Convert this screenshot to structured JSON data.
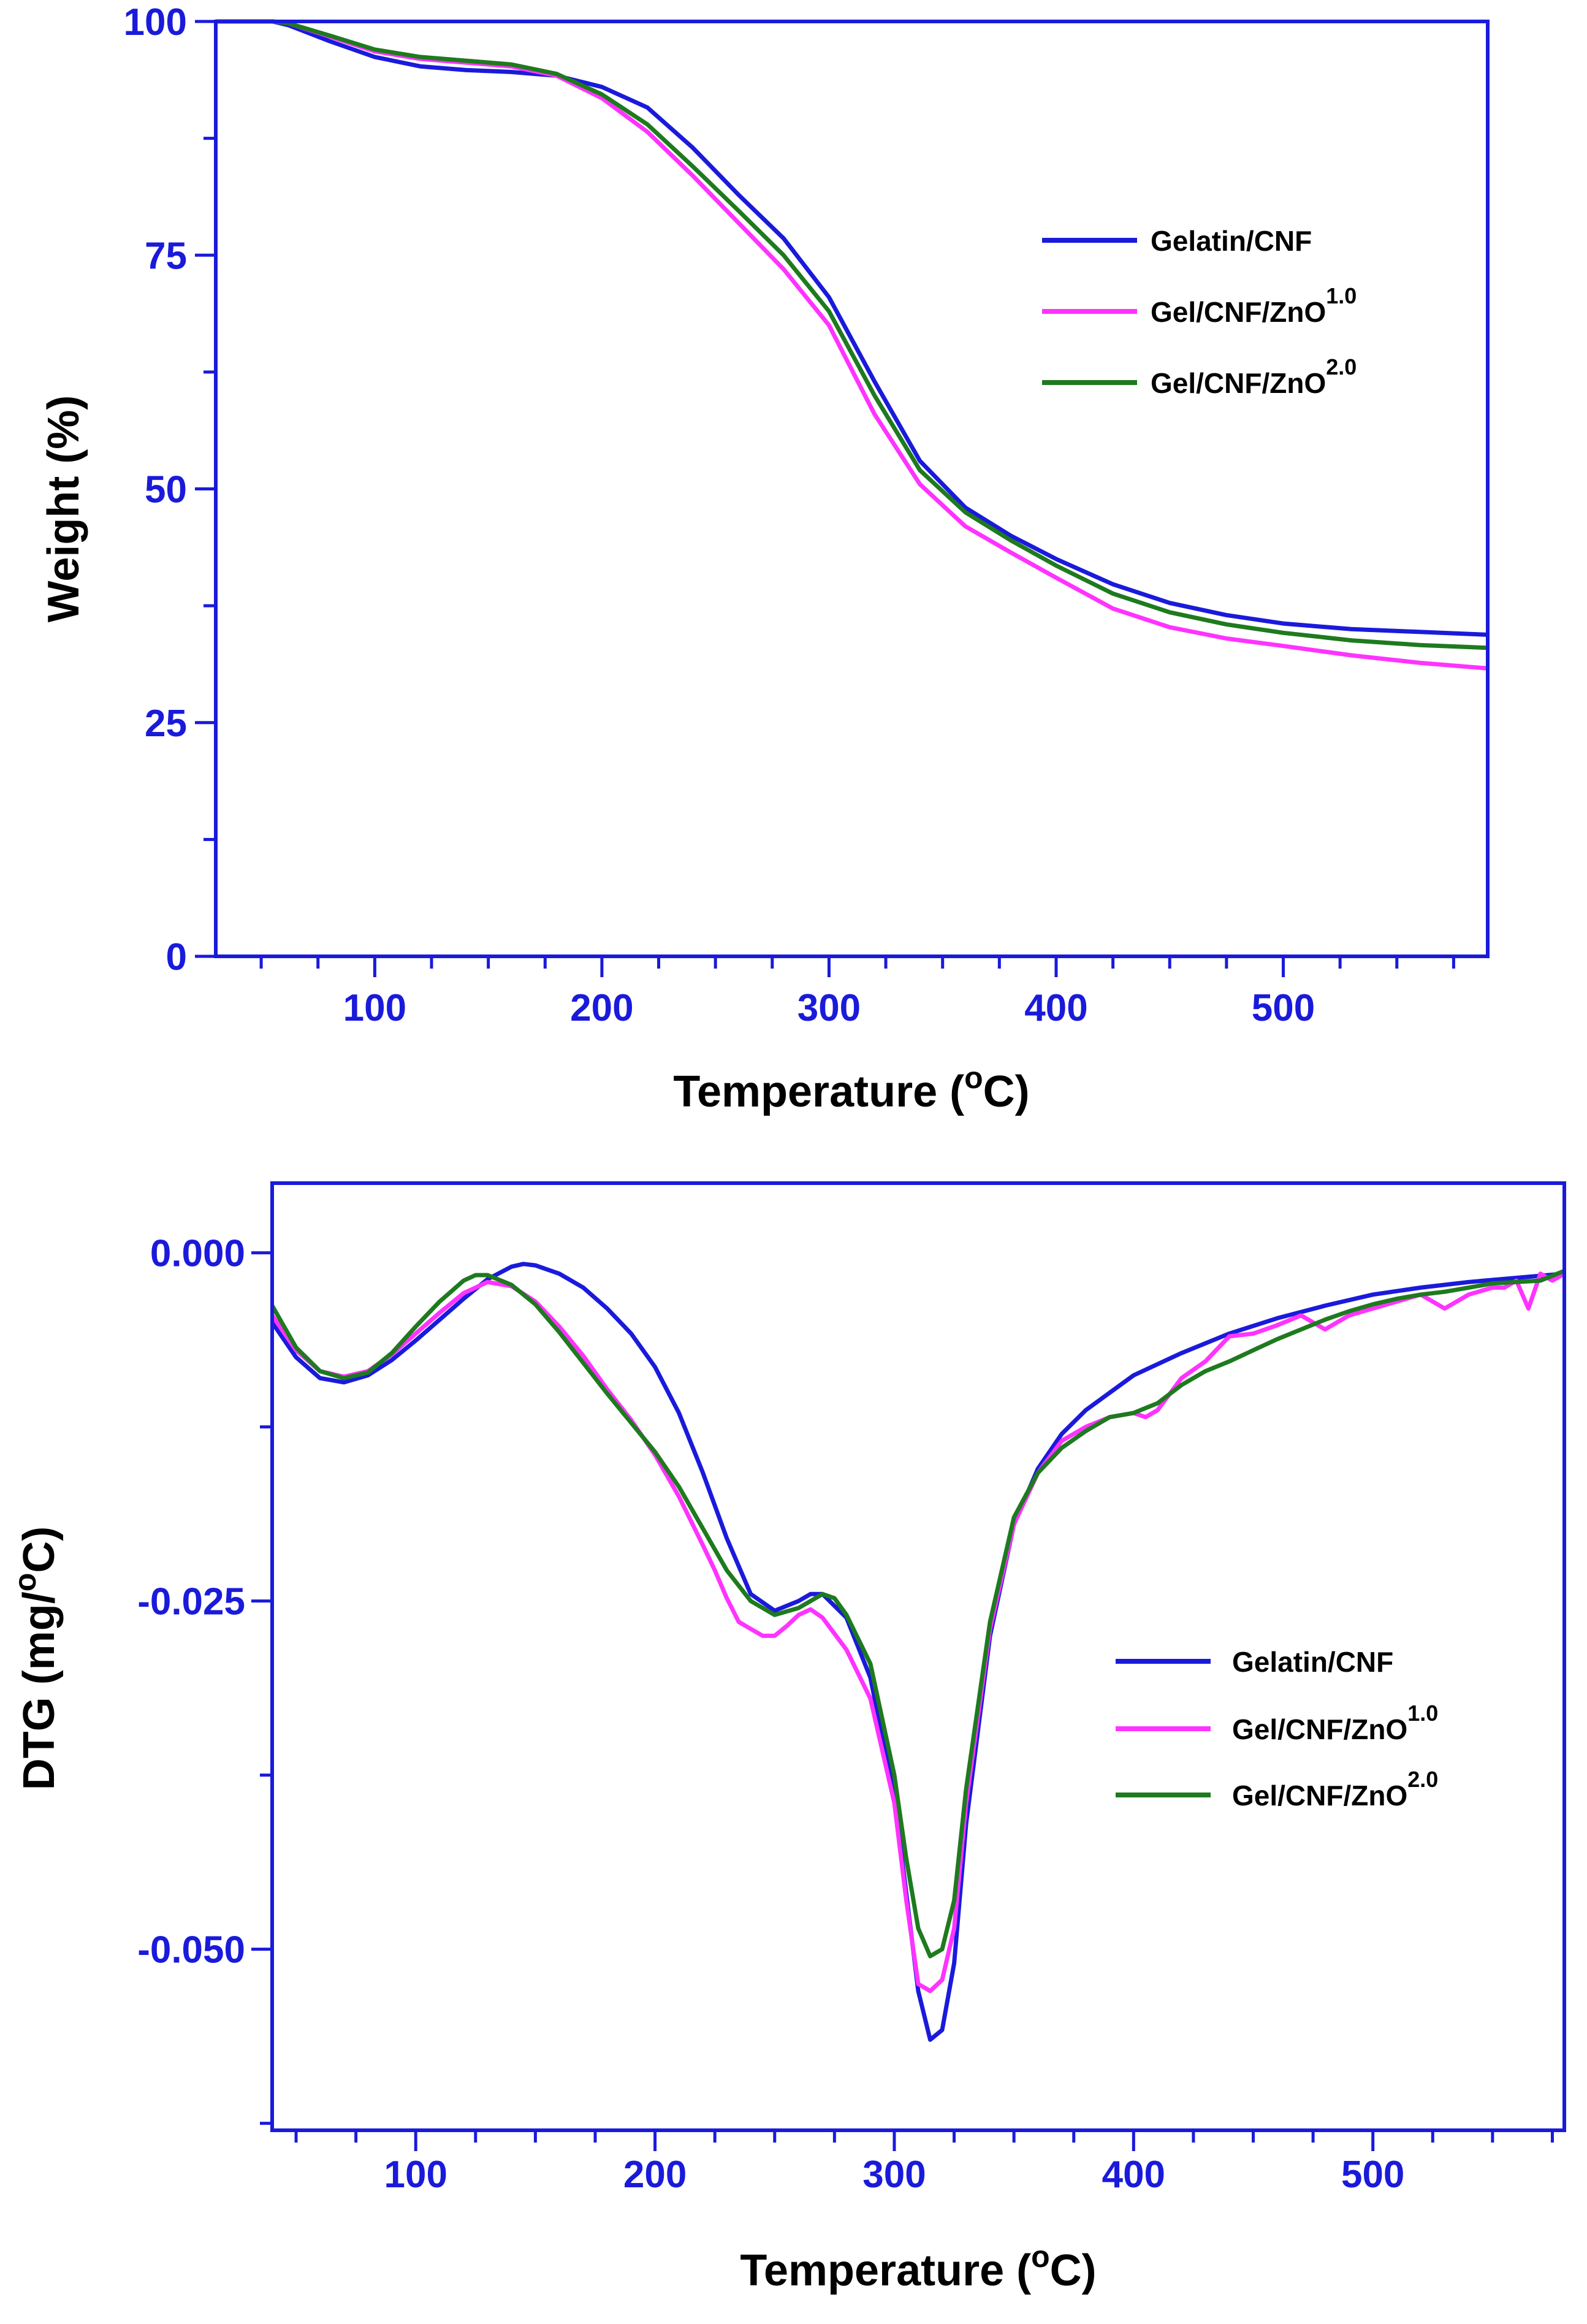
{
  "colors": {
    "axis": "#1a1adb",
    "gelatin_cnf": "#1a1adb",
    "zno_1": "#ff33ff",
    "zno_2": "#1e7a1e"
  },
  "chart_data": [
    {
      "type": "line",
      "title": "",
      "xlabel": "Temperature",
      "xlabel_unit_open": " (",
      "xlabel_unit_sup": "o",
      "xlabel_unit_close": "C)",
      "ylabel": "Weight (%)",
      "xlim": [
        30,
        590
      ],
      "ylim": [
        0,
        100
      ],
      "x_ticks": [
        100,
        200,
        300,
        400,
        500
      ],
      "x_tick_labels": [
        "100",
        "200",
        "300",
        "400",
        "500"
      ],
      "y_ticks": [
        0,
        25,
        50,
        75,
        100
      ],
      "y_tick_labels": [
        "0",
        "25",
        "50",
        "75",
        "100"
      ],
      "legend_position": "right",
      "series": [
        {
          "name": "Gelatin/CNF",
          "label_main": "Gelatin/CNF",
          "label_sup": "",
          "color": "#1a1adb",
          "x": [
            30,
            55,
            62,
            80,
            100,
            120,
            140,
            160,
            180,
            200,
            220,
            240,
            260,
            280,
            300,
            320,
            340,
            360,
            380,
            400,
            425,
            450,
            475,
            500,
            530,
            560,
            590
          ],
          "y": [
            100,
            100,
            99.6,
            97.9,
            96.2,
            95.2,
            94.8,
            94.6,
            94.2,
            93,
            90.8,
            86.5,
            81.5,
            76.8,
            70.5,
            61.5,
            53,
            48,
            45,
            42.5,
            39.8,
            37.8,
            36.5,
            35.6,
            35,
            34.7,
            34.4
          ]
        },
        {
          "name": "Gel/CNF/ZnO 1.0",
          "label_main": "Gel/CNF/ZnO",
          "label_sup": "1.0",
          "color": "#ff33ff",
          "x": [
            30,
            55,
            62,
            80,
            100,
            120,
            140,
            160,
            180,
            200,
            220,
            240,
            260,
            280,
            300,
            320,
            340,
            360,
            380,
            400,
            425,
            450,
            475,
            500,
            530,
            560,
            590
          ],
          "y": [
            100,
            100,
            99.8,
            98.4,
            96.8,
            96,
            95.6,
            95.2,
            94.2,
            91.8,
            88.2,
            83.5,
            78.5,
            73.5,
            67.5,
            58,
            50.5,
            46,
            43.2,
            40.5,
            37.2,
            35.2,
            34,
            33.2,
            32.2,
            31.4,
            30.8
          ]
        },
        {
          "name": "Gel/CNF/ZnO 2.0",
          "label_main": "Gel/CNF/ZnO",
          "label_sup": "2.0",
          "color": "#1e7a1e",
          "x": [
            30,
            55,
            62,
            80,
            100,
            120,
            140,
            160,
            180,
            200,
            220,
            240,
            260,
            280,
            300,
            320,
            340,
            360,
            380,
            400,
            425,
            450,
            475,
            500,
            530,
            560,
            590
          ],
          "y": [
            100,
            100,
            99.8,
            98.5,
            97,
            96.2,
            95.8,
            95.4,
            94.4,
            92.2,
            89,
            84.5,
            79.8,
            75,
            69,
            60,
            52,
            47.5,
            44.5,
            41.8,
            38.8,
            36.8,
            35.5,
            34.6,
            33.8,
            33.3,
            33
          ]
        }
      ]
    },
    {
      "type": "line",
      "title": "",
      "xlabel": "Temperature",
      "xlabel_unit_open": " (",
      "xlabel_unit_sup": "o",
      "xlabel_unit_close": "C)",
      "ylabel_main": "DTG (mg/",
      "ylabel_sup": "o",
      "ylabel_close": "C)",
      "xlim": [
        40,
        580
      ],
      "ylim": [
        -0.063,
        0.005
      ],
      "x_ticks": [
        100,
        200,
        300,
        400,
        500
      ],
      "x_tick_labels": [
        "100",
        "200",
        "300",
        "400",
        "500"
      ],
      "y_ticks": [
        0,
        -0.025,
        -0.05
      ],
      "y_tick_labels": [
        "0.000",
        "-0.025",
        "-0.050"
      ],
      "legend_position": "right",
      "series": [
        {
          "name": "Gelatin/CNF",
          "label_main": "Gelatin/CNF",
          "label_sup": "",
          "color": "#1a1adb",
          "x": [
            40,
            50,
            60,
            70,
            80,
            90,
            100,
            110,
            120,
            130,
            140,
            145,
            150,
            160,
            170,
            180,
            190,
            200,
            210,
            220,
            230,
            240,
            250,
            260,
            265,
            270,
            280,
            290,
            300,
            305,
            310,
            315,
            320,
            325,
            330,
            340,
            350,
            360,
            370,
            380,
            400,
            420,
            440,
            460,
            480,
            500,
            520,
            540,
            560,
            580
          ],
          "y": [
            -0.005,
            -0.0075,
            -0.009,
            -0.0093,
            -0.0088,
            -0.0077,
            -0.0063,
            -0.0048,
            -0.0033,
            -0.0019,
            -0.001,
            -0.0008,
            -0.0009,
            -0.0015,
            -0.0025,
            -0.004,
            -0.0058,
            -0.0082,
            -0.0115,
            -0.0158,
            -0.0205,
            -0.0245,
            -0.0257,
            -0.025,
            -0.0245,
            -0.0245,
            -0.0262,
            -0.0305,
            -0.039,
            -0.046,
            -0.053,
            -0.0565,
            -0.0558,
            -0.051,
            -0.041,
            -0.0275,
            -0.0195,
            -0.0155,
            -0.013,
            -0.0113,
            -0.0088,
            -0.0072,
            -0.0058,
            -0.0047,
            -0.0038,
            -0.003,
            -0.0025,
            -0.0021,
            -0.0018,
            -0.0015
          ]
        },
        {
          "name": "Gel/CNF/ZnO 1.0",
          "label_main": "Gel/CNF/ZnO",
          "label_sup": "1.0",
          "color": "#ff33ff",
          "x": [
            40,
            50,
            60,
            70,
            80,
            90,
            100,
            110,
            120,
            130,
            140,
            150,
            160,
            170,
            180,
            190,
            200,
            210,
            220,
            225,
            230,
            235,
            240,
            245,
            250,
            255,
            260,
            265,
            270,
            280,
            290,
            300,
            305,
            310,
            315,
            320,
            325,
            330,
            340,
            350,
            360,
            370,
            380,
            390,
            400,
            405,
            410,
            420,
            430,
            440,
            450,
            460,
            470,
            480,
            490,
            500,
            510,
            520,
            530,
            540,
            550,
            555,
            560,
            565,
            570,
            575,
            580
          ],
          "y": [
            -0.0045,
            -0.007,
            -0.0085,
            -0.0089,
            -0.0085,
            -0.0073,
            -0.0058,
            -0.0043,
            -0.0029,
            -0.0021,
            -0.0024,
            -0.0035,
            -0.0053,
            -0.0074,
            -0.0098,
            -0.012,
            -0.0145,
            -0.0175,
            -0.021,
            -0.0228,
            -0.0248,
            -0.0265,
            -0.027,
            -0.0275,
            -0.0275,
            -0.0268,
            -0.026,
            -0.0256,
            -0.0262,
            -0.0285,
            -0.032,
            -0.0395,
            -0.0465,
            -0.0525,
            -0.053,
            -0.0522,
            -0.0485,
            -0.0395,
            -0.027,
            -0.0195,
            -0.0158,
            -0.0135,
            -0.0125,
            -0.0118,
            -0.0115,
            -0.0118,
            -0.0113,
            -0.009,
            -0.0078,
            -0.006,
            -0.0058,
            -0.0052,
            -0.0045,
            -0.0055,
            -0.0045,
            -0.004,
            -0.0035,
            -0.003,
            -0.004,
            -0.003,
            -0.0025,
            -0.0025,
            -0.002,
            -0.004,
            -0.0015,
            -0.002,
            -0.0015
          ]
        },
        {
          "name": "Gel/CNF/ZnO 2.0",
          "label_main": "Gel/CNF/ZnO",
          "label_sup": "2.0",
          "color": "#1e7a1e",
          "x": [
            40,
            50,
            60,
            70,
            80,
            90,
            100,
            110,
            120,
            125,
            130,
            140,
            150,
            160,
            170,
            180,
            190,
            200,
            210,
            220,
            230,
            240,
            250,
            260,
            270,
            275,
            280,
            290,
            300,
            305,
            310,
            315,
            320,
            325,
            330,
            340,
            350,
            360,
            370,
            380,
            390,
            400,
            410,
            420,
            430,
            440,
            450,
            460,
            470,
            480,
            490,
            500,
            510,
            520,
            530,
            540,
            550,
            560,
            570,
            580
          ],
          "y": [
            -0.0038,
            -0.0068,
            -0.0085,
            -0.009,
            -0.0086,
            -0.0072,
            -0.0053,
            -0.0035,
            -0.002,
            -0.0016,
            -0.0016,
            -0.0023,
            -0.0037,
            -0.0057,
            -0.0079,
            -0.0101,
            -0.0122,
            -0.0143,
            -0.0168,
            -0.0198,
            -0.0228,
            -0.025,
            -0.026,
            -0.0255,
            -0.0245,
            -0.0248,
            -0.026,
            -0.0295,
            -0.0375,
            -0.0435,
            -0.0485,
            -0.0505,
            -0.05,
            -0.0465,
            -0.0385,
            -0.0265,
            -0.019,
            -0.0158,
            -0.014,
            -0.0128,
            -0.0118,
            -0.0115,
            -0.0108,
            -0.0095,
            -0.0085,
            -0.0078,
            -0.007,
            -0.0062,
            -0.0055,
            -0.0048,
            -0.0042,
            -0.0037,
            -0.0033,
            -0.003,
            -0.0028,
            -0.0025,
            -0.0022,
            -0.0021,
            -0.002,
            -0.0013
          ]
        }
      ]
    }
  ]
}
